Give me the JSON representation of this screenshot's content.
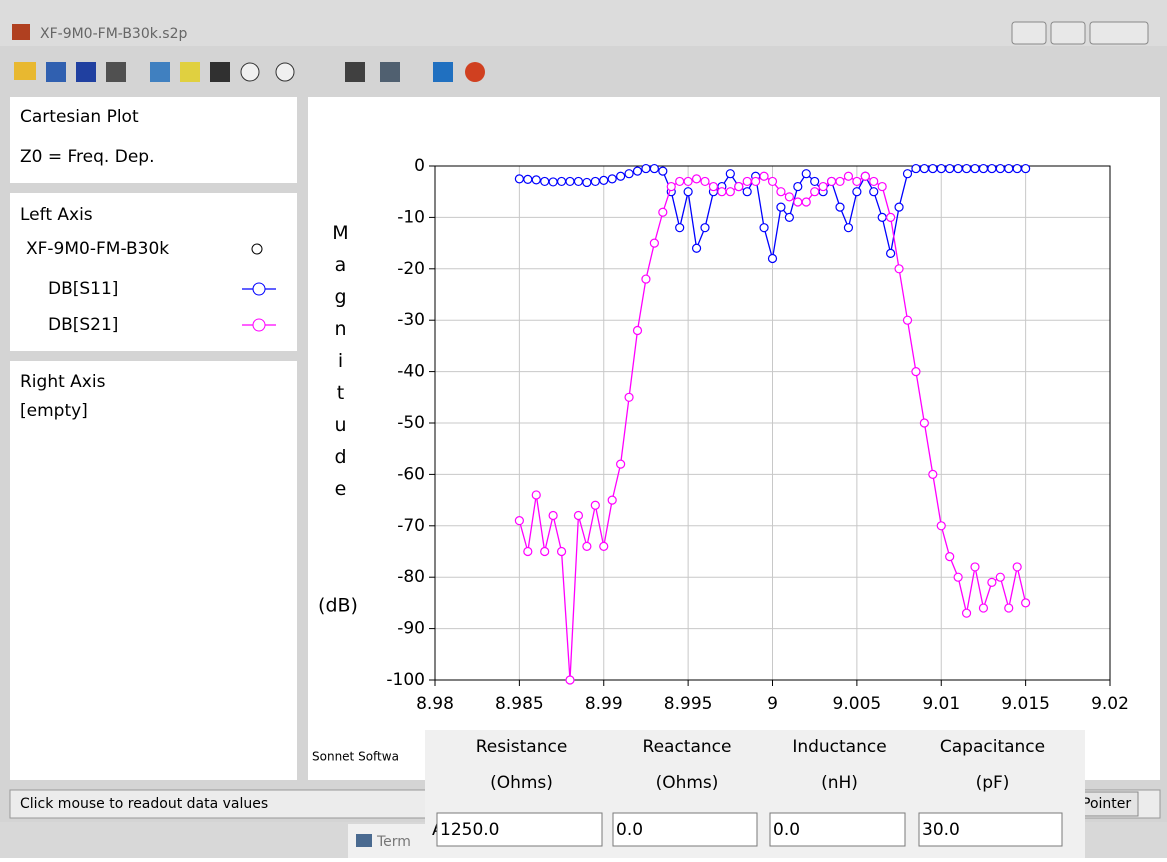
{
  "window": {
    "title": "XF-9M0-FM-B30k.s2p"
  },
  "sidebar": {
    "plot_type": "Cartesian Plot",
    "z0": "Z0 = Freq. Dep.",
    "left_axis": "Left Axis",
    "file": "XF-9M0-FM-B30k",
    "right_axis": "Right Axis",
    "right_empty": "[empty]"
  },
  "chart_data": {
    "type": "line",
    "y_label": "Magnitude",
    "y_unit": "(dB)",
    "credit": "Sonnet Softwa",
    "x": [
      8.985,
      8.9855,
      8.986,
      8.9865,
      8.987,
      8.9875,
      8.988,
      8.9885,
      8.989,
      8.9895,
      8.99,
      8.9905,
      8.991,
      8.9915,
      8.992,
      8.9925,
      8.993,
      8.9935,
      8.994,
      8.9945,
      8.995,
      8.9955,
      8.996,
      8.9965,
      8.997,
      8.9975,
      8.998,
      8.9985,
      8.999,
      8.9995,
      9,
      9.0005,
      9.001,
      9.0015,
      9.002,
      9.0025,
      9.003,
      9.0035,
      9.004,
      9.0045,
      9.005,
      9.0055,
      9.006,
      9.0065,
      9.007,
      9.0075,
      9.008,
      9.0085,
      9.009,
      9.0095,
      9.01,
      9.0105,
      9.011,
      9.0115,
      9.012,
      9.0125,
      9.013,
      9.0135,
      9.014,
      9.0145,
      9.015
    ],
    "series": [
      {
        "name": "DB[S11]",
        "color": "#0000ff",
        "values": [
          -2.5,
          -2.6,
          -2.7,
          -3,
          -3.1,
          -3,
          -3,
          -3,
          -3.2,
          -3,
          -2.8,
          -2.5,
          -2,
          -1.5,
          -1,
          -0.5,
          -0.5,
          -1,
          -5,
          -12,
          -5,
          -16,
          -12,
          -5,
          -4,
          -1.5,
          -4,
          -5,
          -2,
          -12,
          -18,
          -8,
          -10,
          -4,
          -1.5,
          -3,
          -5,
          -3,
          -8,
          -12,
          -5,
          -2,
          -5,
          -10,
          -17,
          -8,
          -1.5,
          -0.5,
          -0.5,
          -0.5,
          -0.5,
          -0.5,
          -0.5,
          -0.5,
          -0.5,
          -0.5,
          -0.5,
          -0.5,
          -0.5,
          -0.5,
          -0.5
        ]
      },
      {
        "name": "DB[S21]",
        "color": "#ff00ff",
        "values": [
          -69,
          -75,
          -64,
          -75,
          -68,
          -75,
          -100,
          -68,
          -74,
          -66,
          -74,
          -65,
          -58,
          -45,
          -32,
          -22,
          -15,
          -9,
          -4,
          -3,
          -3,
          -2.5,
          -3,
          -4,
          -5,
          -5,
          -4,
          -3,
          -3,
          -2,
          -3,
          -5,
          -6,
          -7,
          -7,
          -5,
          -4,
          -3,
          -3,
          -2,
          -3,
          -2,
          -3,
          -4,
          -10,
          -20,
          -30,
          -40,
          -50,
          -60,
          -70,
          -76,
          -80,
          -87,
          -78,
          -86,
          -81,
          -80,
          -86,
          -78,
          -85
        ]
      }
    ],
    "xlim": [
      8.98,
      9.02
    ],
    "ylim": [
      -100,
      0
    ],
    "xticks": [
      8.98,
      8.985,
      8.99,
      8.995,
      9,
      9.005,
      9.01,
      9.015,
      9.02
    ],
    "yticks": [
      0,
      -10,
      -20,
      -30,
      -40,
      -50,
      -60,
      -70,
      -80,
      -90,
      -100
    ],
    "grid": true
  },
  "status": {
    "message": "Click mouse to readout data values",
    "right_button": "Pointer"
  },
  "dialog": {
    "headers": [
      [
        "Resistance",
        "(Ohms)"
      ],
      [
        "Reactance",
        "(Ohms)"
      ],
      [
        "Inductance",
        "(nH)"
      ],
      [
        "Capacitance",
        "(pF)"
      ]
    ],
    "row_label": "All",
    "values": [
      "1250.0",
      "0.0",
      "0.0",
      "30.0"
    ]
  },
  "taskbar": {
    "item": "Term"
  }
}
